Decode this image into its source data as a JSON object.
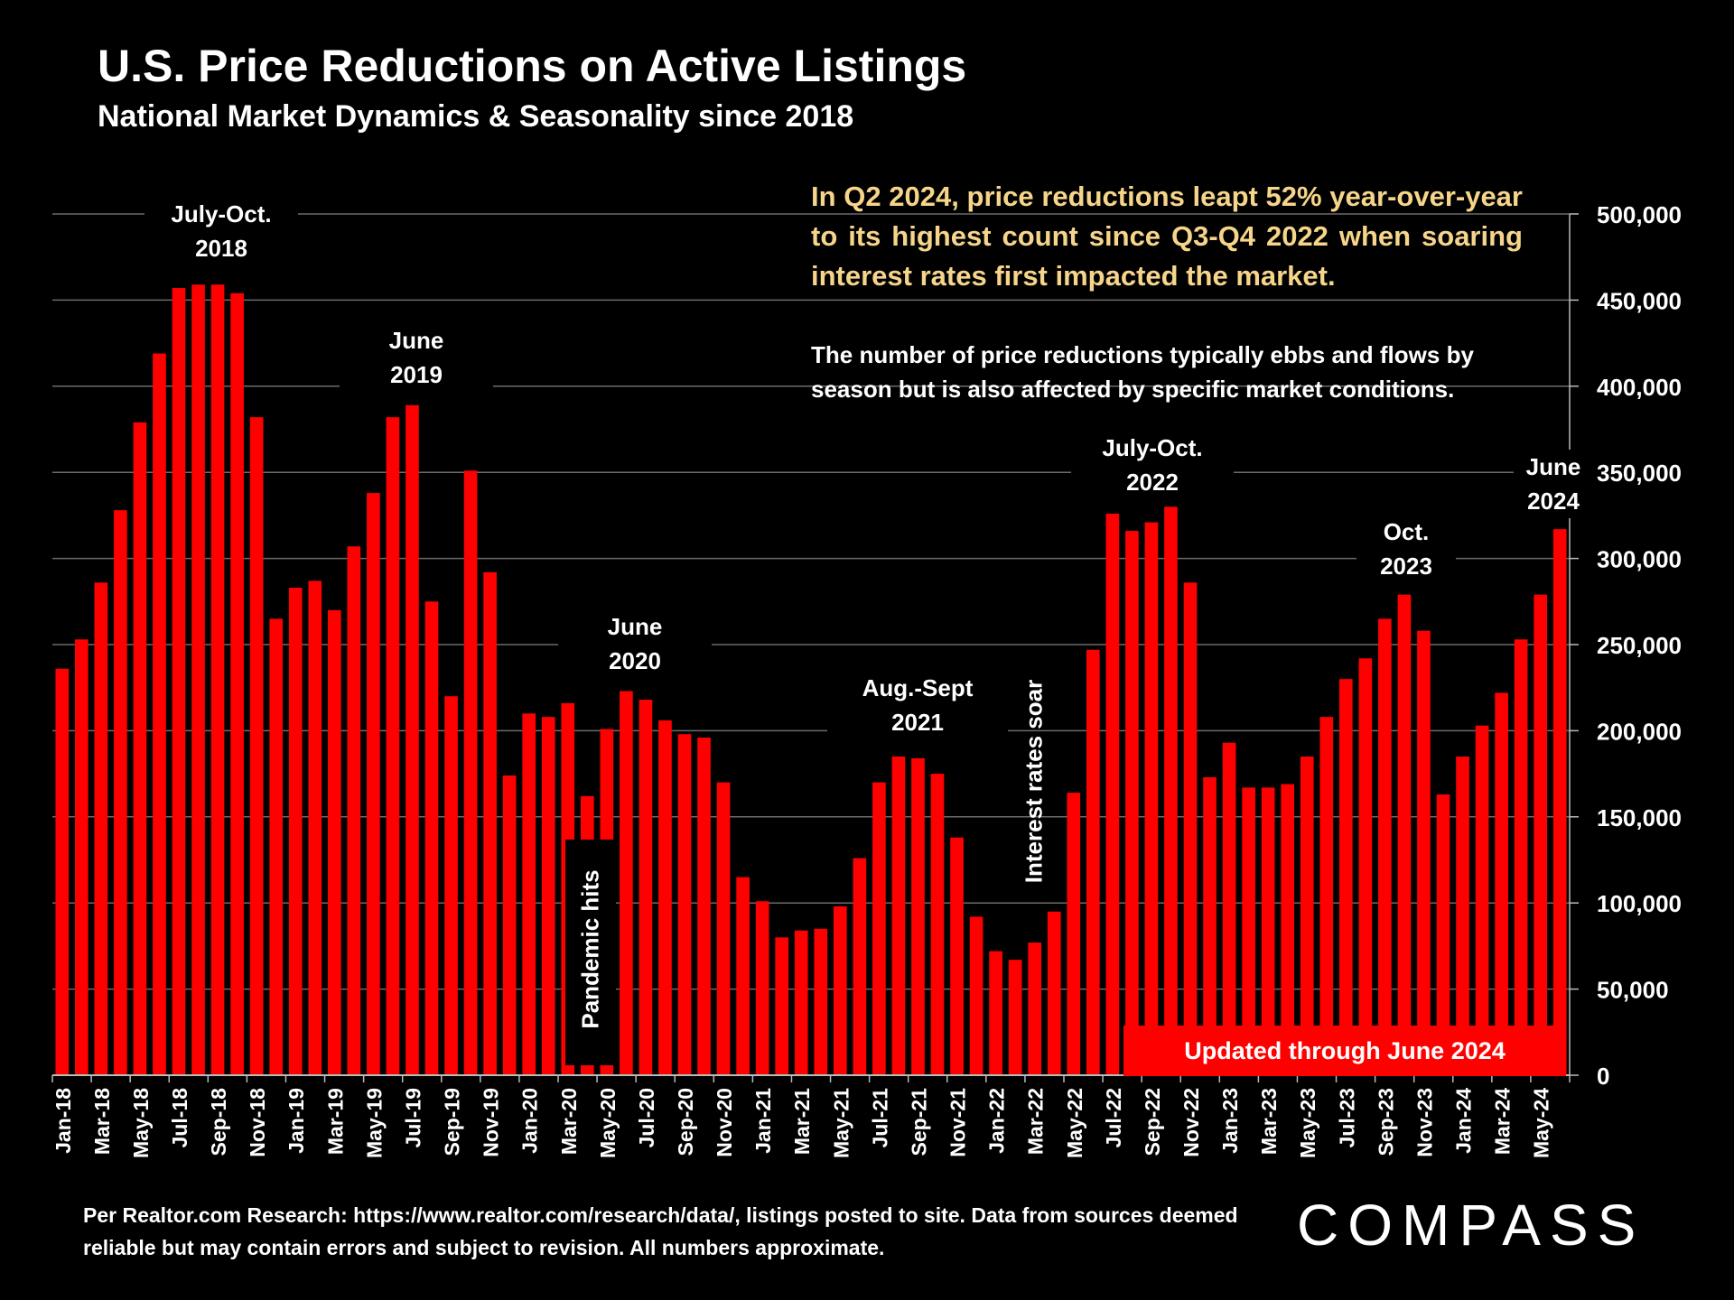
{
  "title": "U.S. Price Reductions on Active Listings",
  "subtitle": "National Market Dynamics & Seasonality since 2018",
  "callout": "In Q2 2024, price reductions leapt 52% year-over-year to its highest count since Q3-Q4 2022 when soaring interest rates first impacted the market.",
  "note": "The number of price reductions typically ebbs and flows by season but is also affected by specific market conditions.",
  "badge": "Updated through June 2024",
  "annotations": {
    "a2018": "July-Oct.\n2018",
    "a2019": "June\n2019",
    "a2020": "June\n2020",
    "a2021": "Aug.-Sept\n2021",
    "a2022": "July-Oct.\n2022",
    "a2023": "Oct.\n2023",
    "a2024": "June\n2024",
    "pandemic": "Pandemic hits",
    "rates": "Interest rates soar"
  },
  "footer": "Per Realtor.com Research:  https://www.realtor.com/research/data/, listings posted to site. Data from sources deemed reliable but may contain errors and subject to revision. All numbers approximate.",
  "logo": "COMPASS",
  "colors": {
    "bar": "#ff0000",
    "callout": "#f6d58b",
    "background": "#000000"
  },
  "chart_data": {
    "type": "bar",
    "ylim": [
      0,
      500000
    ],
    "yticks": [
      "0",
      "50,000",
      "100,000",
      "150,000",
      "200,000",
      "250,000",
      "300,000",
      "350,000",
      "400,000",
      "450,000",
      "500,000"
    ],
    "yaxis_side": "right",
    "grid": true,
    "categories": [
      "Jan-18",
      "Feb-18",
      "Mar-18",
      "Apr-18",
      "May-18",
      "Jun-18",
      "Jul-18",
      "Aug-18",
      "Sep-18",
      "Oct-18",
      "Nov-18",
      "Dec-18",
      "Jan-19",
      "Feb-19",
      "Mar-19",
      "Apr-19",
      "May-19",
      "Jun-19",
      "Jul-19",
      "Aug-19",
      "Sep-19",
      "Oct-19",
      "Nov-19",
      "Dec-19",
      "Jan-20",
      "Feb-20",
      "Mar-20",
      "Apr-20",
      "May-20",
      "Jun-20",
      "Jul-20",
      "Aug-20",
      "Sep-20",
      "Oct-20",
      "Nov-20",
      "Dec-20",
      "Jan-21",
      "Feb-21",
      "Mar-21",
      "Apr-21",
      "May-21",
      "Jun-21",
      "Jul-21",
      "Aug-21",
      "Sep-21",
      "Oct-21",
      "Nov-21",
      "Dec-21",
      "Jan-22",
      "Feb-22",
      "Mar-22",
      "Apr-22",
      "May-22",
      "Jun-22",
      "Jul-22",
      "Aug-22",
      "Sep-22",
      "Oct-22",
      "Nov-22",
      "Dec-22",
      "Jan-23",
      "Feb-23",
      "Mar-23",
      "Apr-23",
      "May-23",
      "Jun-23",
      "Jul-23",
      "Aug-23",
      "Sep-23",
      "Oct-23",
      "Nov-23",
      "Dec-23",
      "Jan-24",
      "Feb-24",
      "Mar-24",
      "Apr-24",
      "May-24",
      "Jun-24"
    ],
    "x_tick_labels": [
      "Jan-18",
      "Mar-18",
      "May-18",
      "Jul-18",
      "Sep-18",
      "Nov-18",
      "Jan-19",
      "Mar-19",
      "May-19",
      "Jul-19",
      "Sep-19",
      "Nov-19",
      "Jan-20",
      "Mar-20",
      "May-20",
      "Jul-20",
      "Sep-20",
      "Nov-20",
      "Jan-21",
      "Mar-21",
      "May-21",
      "Jul-21",
      "Sep-21",
      "Nov-21",
      "Jan-22",
      "Mar-22",
      "May-22",
      "Jul-22",
      "Sep-22",
      "Nov-22",
      "Jan-23",
      "Mar-23",
      "May-23",
      "Jul-23",
      "Sep-23",
      "Nov-23",
      "Jan-24",
      "Mar-24",
      "May-24"
    ],
    "values": [
      236000,
      253000,
      286000,
      328000,
      379000,
      419000,
      457000,
      459000,
      459000,
      454000,
      382000,
      265000,
      283000,
      287000,
      270000,
      307000,
      338000,
      382000,
      389000,
      275000,
      220000,
      351000,
      292000,
      174000,
      210000,
      208000,
      216000,
      162000,
      201000,
      223000,
      218000,
      206000,
      198000,
      196000,
      170000,
      115000,
      101000,
      80000,
      84000,
      85000,
      98000,
      126000,
      170000,
      185000,
      184000,
      175000,
      138000,
      92000,
      72000,
      67000,
      77000,
      95000,
      164000,
      247000,
      326000,
      316000,
      321000,
      330000,
      286000,
      173000,
      193000,
      167000,
      167000,
      169000,
      185000,
      208000,
      230000,
      242000,
      265000,
      279000,
      258000,
      163000,
      185000,
      203000,
      222000,
      253000,
      279000,
      317000
    ]
  }
}
